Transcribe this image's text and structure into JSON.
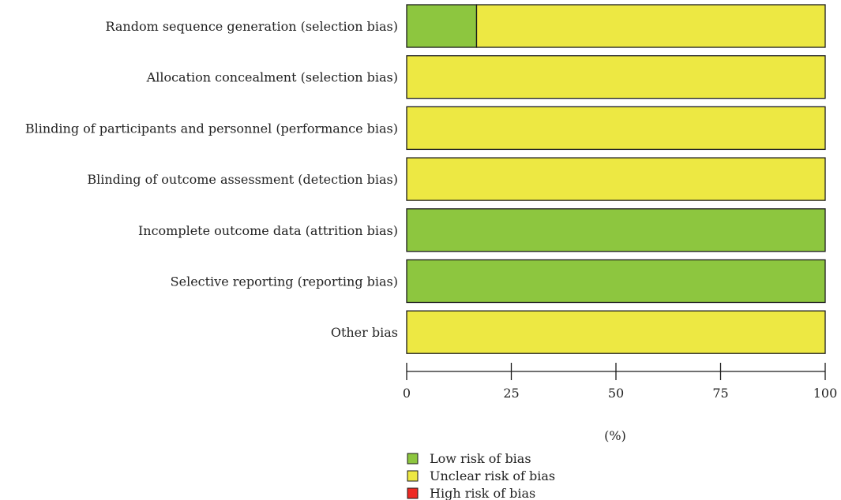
{
  "chart_data": {
    "type": "bar",
    "orientation": "horizontal",
    "stacked": true,
    "categories": [
      "Random sequence generation (selection bias)",
      "Allocation concealment (selection bias)",
      "Blinding of participants and personnel (performance bias)",
      "Blinding of outcome assessment (detection bias)",
      "Incomplete outcome data (attrition bias)",
      "Selective reporting (reporting bias)",
      "Other bias"
    ],
    "series": [
      {
        "name": "Low risk of bias",
        "color": "#8dc63f",
        "values": [
          16.7,
          0,
          0,
          0,
          100,
          100,
          0
        ]
      },
      {
        "name": "Unclear risk of bias",
        "color": "#ede843",
        "values": [
          83.3,
          100,
          100,
          100,
          0,
          0,
          100
        ]
      },
      {
        "name": "High risk of bias",
        "color": "#ee2a24",
        "values": [
          0,
          0,
          0,
          0,
          0,
          0,
          0
        ]
      }
    ],
    "xlabel": "(%)",
    "xlim": [
      0,
      100
    ],
    "xticks": [
      0,
      25,
      50,
      75,
      100
    ],
    "grid": false,
    "legend_position": "bottom-center"
  }
}
